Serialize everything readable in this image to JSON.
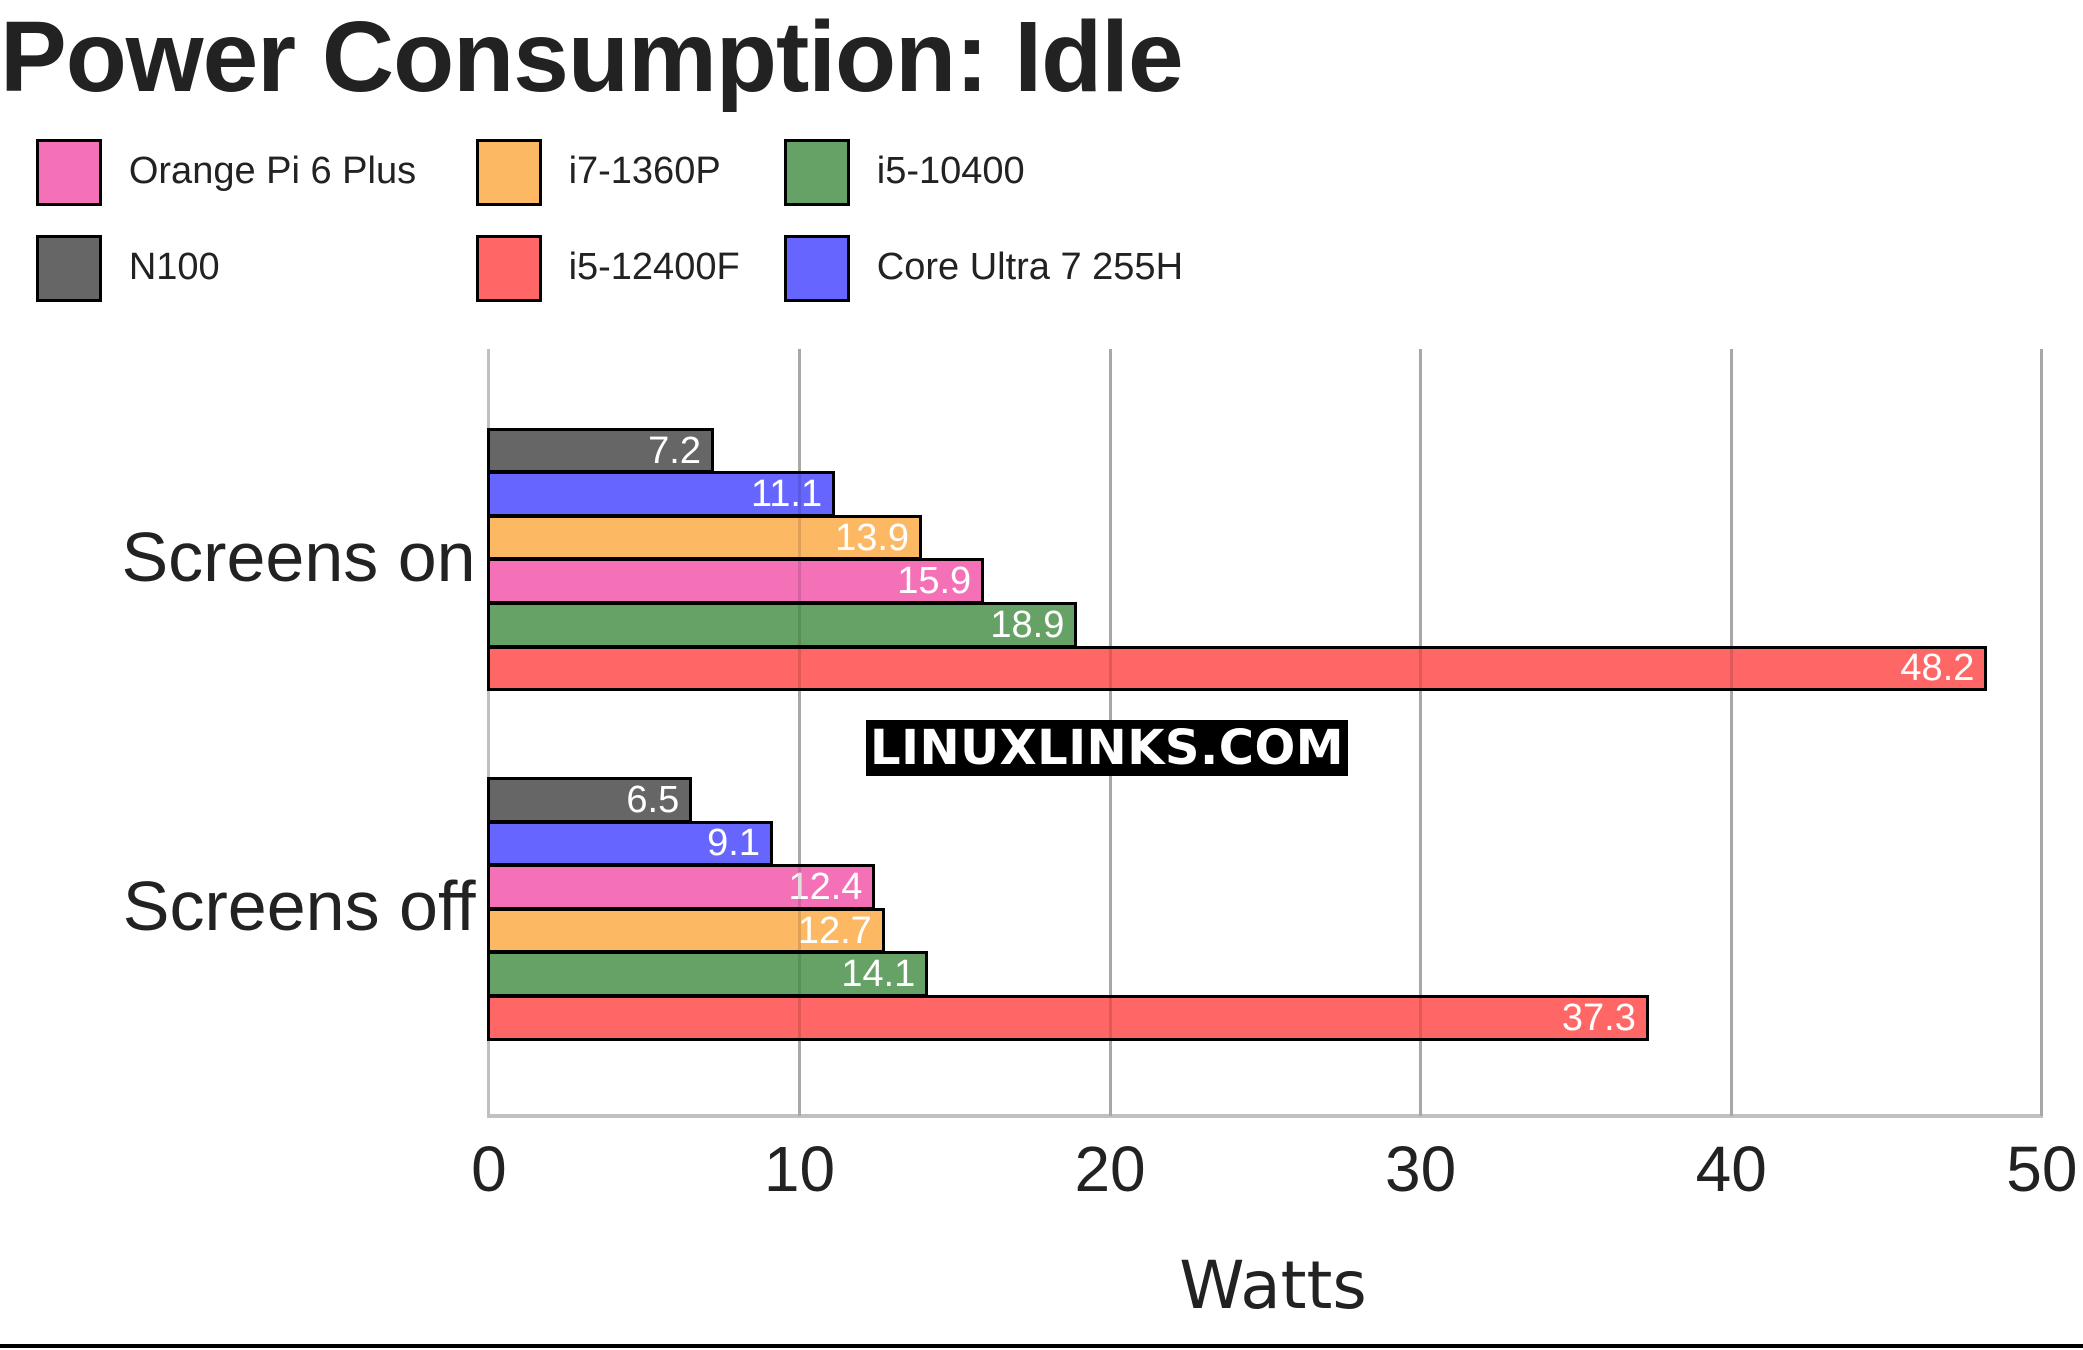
{
  "chart_data": {
    "type": "bar",
    "orientation": "horizontal",
    "title": "Power Consumption: Idle",
    "xlabel": "Watts",
    "ylabel": "",
    "xlim": [
      0,
      50
    ],
    "xticks": [
      "0",
      "10",
      "20",
      "30",
      "40",
      "50"
    ],
    "grid": true,
    "legend_position": "top-left",
    "categories": [
      "Screens on",
      "Screens off"
    ],
    "series": [
      {
        "name": "Orange Pi 6 Plus",
        "color": "#f471b8",
        "values": [
          15.9,
          12.4
        ]
      },
      {
        "name": "i7-1360P",
        "color": "#fdb863",
        "values": [
          13.9,
          12.7
        ]
      },
      {
        "name": "i5-10400",
        "color": "#66a266",
        "values": [
          18.9,
          14.1
        ]
      },
      {
        "name": "N100",
        "color": "#666666",
        "values": [
          7.2,
          6.5
        ]
      },
      {
        "name": "i5-12400F",
        "color": "#ff6666",
        "values": [
          48.2,
          37.3
        ]
      },
      {
        "name": "Core Ultra 7 255H",
        "color": "#6666ff",
        "values": [
          11.1,
          9.1
        ]
      }
    ],
    "bar_order": {
      "Screens on": [
        {
          "name": "N100",
          "value": "7.2"
        },
        {
          "name": "Core Ultra 7 255H",
          "value": "11.1"
        },
        {
          "name": "i7-1360P",
          "value": "13.9"
        },
        {
          "name": "Orange Pi 6 Plus",
          "value": "15.9"
        },
        {
          "name": "i5-10400",
          "value": "18.9"
        },
        {
          "name": "i5-12400F",
          "value": "48.2"
        }
      ],
      "Screens off": [
        {
          "name": "N100",
          "value": "6.5"
        },
        {
          "name": "Core Ultra 7 255H",
          "value": "9.1"
        },
        {
          "name": "Orange Pi 6 Plus",
          "value": "12.4"
        },
        {
          "name": "i7-1360P",
          "value": "12.7"
        },
        {
          "name": "i5-10400",
          "value": "14.1"
        },
        {
          "name": "i5-12400F",
          "value": "37.3"
        }
      ]
    },
    "annotations": [
      "LINUXLINKS.COM"
    ]
  },
  "legend": [
    {
      "label": "Orange Pi 6 Plus",
      "color": "#f471b8"
    },
    {
      "label": "i7-1360P",
      "color": "#fdb863"
    },
    {
      "label": "i5-10400",
      "color": "#66a266"
    },
    {
      "label": "N100",
      "color": "#666666"
    },
    {
      "label": "i5-12400F",
      "color": "#ff6666"
    },
    {
      "label": "Core Ultra 7 255H",
      "color": "#6666ff"
    }
  ],
  "watermark": "LINUXLINKS.COM"
}
